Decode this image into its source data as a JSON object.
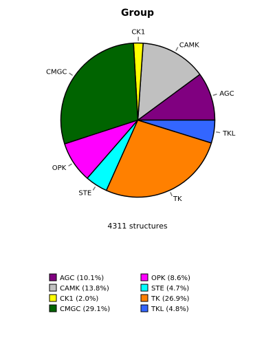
{
  "chart_data": {
    "type": "pie",
    "title": "Group",
    "subtitle": "4311 structures",
    "slices": [
      {
        "label": "AGC",
        "legend": "AGC (10.1%)",
        "value": 10.1,
        "color": "#800080"
      },
      {
        "label": "CAMK",
        "legend": "CAMK (13.8%)",
        "value": 13.8,
        "color": "#c0c0c0"
      },
      {
        "label": "CK1",
        "legend": "CK1 (2.0%)",
        "value": 2.0,
        "color": "#ffff00"
      },
      {
        "label": "CMGC",
        "legend": "CMGC (29.1%)",
        "value": 29.1,
        "color": "#006400"
      },
      {
        "label": "OPK",
        "legend": "OPK (8.6%)",
        "value": 8.6,
        "color": "#ff00ff"
      },
      {
        "label": "STE",
        "legend": "STE (4.7%)",
        "value": 4.7,
        "color": "#00ffff"
      },
      {
        "label": "TK",
        "legend": "TK (26.9%)",
        "value": 26.9,
        "color": "#ff8000"
      },
      {
        "label": "TKL",
        "legend": "TKL (4.8%)",
        "value": 4.8,
        "color": "#3366ff"
      }
    ],
    "start": "east",
    "direction": "counterclockwise",
    "legend_position": "bottom"
  }
}
